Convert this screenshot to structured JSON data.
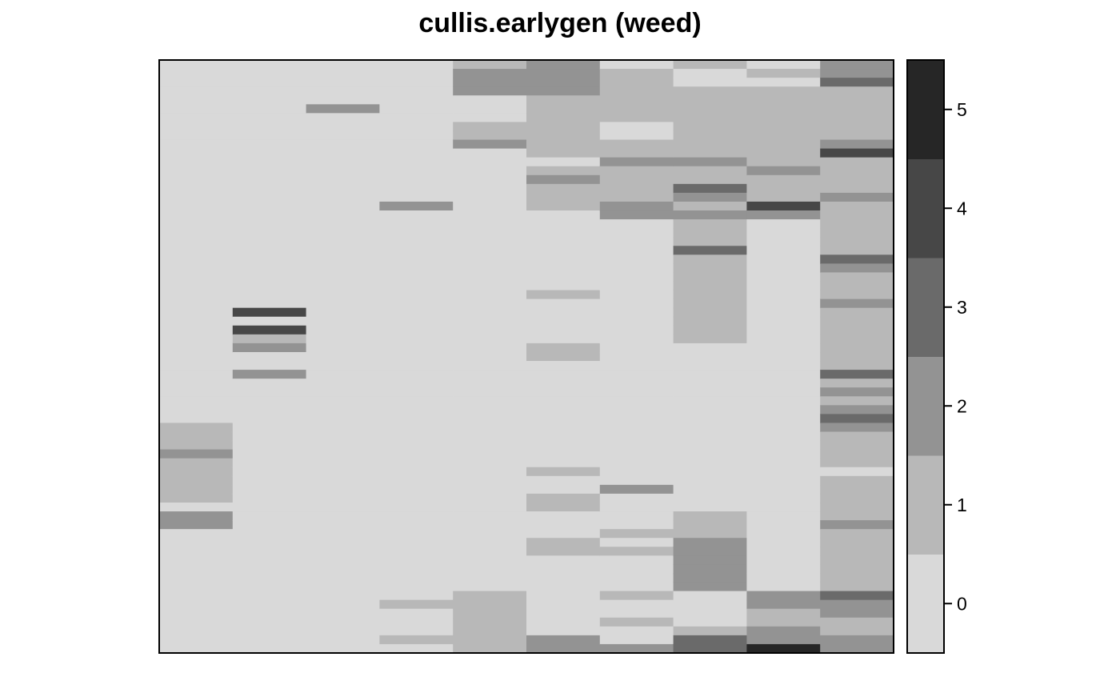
{
  "chart_data": {
    "type": "heatmap",
    "title": "cullis.earlygen (weed)",
    "xlabel": "",
    "ylabel": "",
    "n_cols": 10,
    "n_rows": 67,
    "zlim": [
      0,
      5
    ],
    "colorbar": {
      "ticks": [
        0,
        1,
        2,
        3,
        4,
        5
      ],
      "colors": [
        "#d9d9d9",
        "#b8b8b8",
        "#939393",
        "#6a6a6a",
        "#474747",
        "#262626"
      ]
    },
    "columns": [
      [
        0,
        0,
        0,
        0,
        0,
        0,
        0,
        0,
        0,
        0,
        0,
        0,
        0,
        0,
        0,
        0,
        0,
        0,
        0,
        0,
        0,
        0,
        0,
        0,
        0,
        0,
        0,
        0,
        0,
        0,
        0,
        0,
        0,
        0,
        0,
        0,
        0,
        0,
        0,
        0,
        0,
        1,
        1,
        1,
        2,
        1,
        1,
        1,
        1,
        1,
        0,
        2,
        2,
        0,
        0,
        0,
        0,
        0,
        0,
        0,
        0,
        0,
        0,
        0,
        0,
        0,
        0
      ],
      [
        0,
        0,
        0,
        0,
        0,
        0,
        0,
        0,
        0,
        0,
        0,
        0,
        0,
        0,
        0,
        0,
        0,
        0,
        0,
        0,
        0,
        0,
        0,
        0,
        0,
        0,
        0,
        0,
        4,
        0,
        4,
        1,
        2,
        0,
        0,
        2,
        0,
        0,
        0,
        0,
        0,
        0,
        0,
        0,
        0,
        0,
        0,
        0,
        0,
        0,
        0,
        0,
        0,
        0,
        0,
        0,
        0,
        0,
        0,
        0,
        0,
        0,
        0,
        0,
        0,
        0,
        0
      ],
      [
        0,
        0,
        0,
        0,
        0,
        2,
        0,
        0,
        0,
        0,
        0,
        0,
        0,
        0,
        0,
        0,
        0,
        0,
        0,
        0,
        0,
        0,
        0,
        0,
        0,
        0,
        0,
        0,
        0,
        0,
        0,
        0,
        0,
        0,
        0,
        0,
        0,
        0,
        0,
        0,
        0,
        0,
        0,
        0,
        0,
        0,
        0,
        0,
        0,
        0,
        0,
        0,
        0,
        0,
        0,
        0,
        0,
        0,
        0,
        0,
        0,
        0,
        0,
        0,
        0,
        0,
        0
      ],
      [
        0,
        0,
        0,
        0,
        0,
        0,
        0,
        0,
        0,
        0,
        0,
        0,
        0,
        0,
        0,
        0,
        2,
        0,
        0,
        0,
        0,
        0,
        0,
        0,
        0,
        0,
        0,
        0,
        0,
        0,
        0,
        0,
        0,
        0,
        0,
        0,
        0,
        0,
        0,
        0,
        0,
        0,
        0,
        0,
        0,
        0,
        0,
        0,
        0,
        0,
        0,
        0,
        0,
        0,
        0,
        0,
        0,
        0,
        0,
        0,
        0,
        1,
        0,
        0,
        0,
        1,
        0
      ],
      [
        1,
        2,
        2,
        2,
        0,
        0,
        0,
        1,
        1,
        2,
        0,
        0,
        0,
        0,
        0,
        0,
        0,
        0,
        0,
        0,
        0,
        0,
        0,
        0,
        0,
        0,
        0,
        0,
        0,
        0,
        0,
        0,
        0,
        0,
        0,
        0,
        0,
        0,
        0,
        0,
        0,
        0,
        0,
        0,
        0,
        0,
        0,
        0,
        0,
        0,
        0,
        0,
        0,
        0,
        0,
        0,
        0,
        0,
        0,
        0,
        1,
        1,
        1,
        1,
        1,
        1,
        1
      ],
      [
        2,
        2,
        2,
        2,
        1,
        1,
        1,
        1,
        1,
        1,
        1,
        0,
        1,
        2,
        1,
        1,
        1,
        0,
        0,
        0,
        0,
        0,
        0,
        0,
        0,
        0,
        1,
        0,
        0,
        0,
        0,
        0,
        1,
        1,
        0,
        0,
        0,
        0,
        0,
        0,
        0,
        0,
        0,
        0,
        0,
        0,
        1,
        0,
        0,
        1,
        1,
        0,
        0,
        0,
        1,
        1,
        0,
        0,
        0,
        0,
        0,
        0,
        0,
        0,
        0,
        2,
        2
      ],
      [
        0,
        1,
        1,
        1,
        1,
        1,
        1,
        0,
        0,
        1,
        1,
        2,
        1,
        1,
        1,
        1,
        2,
        2,
        0,
        0,
        0,
        0,
        0,
        0,
        0,
        0,
        0,
        0,
        0,
        0,
        0,
        0,
        0,
        0,
        0,
        0,
        0,
        0,
        0,
        0,
        0,
        0,
        0,
        0,
        0,
        0,
        0,
        0,
        2,
        0,
        0,
        0,
        0,
        1,
        0,
        1,
        0,
        0,
        0,
        0,
        1,
        0,
        0,
        1,
        0,
        0,
        2
      ],
      [
        1,
        0,
        0,
        1,
        1,
        1,
        1,
        1,
        1,
        1,
        1,
        2,
        1,
        1,
        3,
        2,
        1,
        2,
        1,
        1,
        1,
        3,
        1,
        1,
        1,
        1,
        1,
        1,
        1,
        1,
        1,
        1,
        0,
        0,
        0,
        0,
        0,
        0,
        0,
        0,
        0,
        0,
        0,
        0,
        0,
        0,
        0,
        0,
        0,
        0,
        0,
        1,
        1,
        1,
        2,
        2,
        2,
        2,
        2,
        2,
        0,
        0,
        0,
        0,
        1,
        3,
        3
      ],
      [
        0,
        1,
        0,
        1,
        1,
        1,
        1,
        1,
        1,
        1,
        1,
        1,
        2,
        1,
        1,
        1,
        4,
        2,
        0,
        0,
        0,
        0,
        0,
        0,
        0,
        0,
        0,
        0,
        0,
        0,
        0,
        0,
        0,
        0,
        0,
        0,
        0,
        0,
        0,
        0,
        0,
        0,
        0,
        0,
        0,
        0,
        0,
        0,
        0,
        0,
        0,
        0,
        0,
        0,
        0,
        0,
        0,
        0,
        0,
        0,
        2,
        2,
        1,
        1,
        2,
        2,
        5
      ],
      [
        2,
        2,
        3,
        1,
        1,
        1,
        1,
        1,
        1,
        2,
        4,
        1,
        1,
        1,
        1,
        2,
        1,
        1,
        1,
        1,
        1,
        1,
        3,
        2,
        1,
        1,
        1,
        2,
        1,
        1,
        1,
        1,
        1,
        1,
        1,
        3,
        1,
        2,
        1,
        2,
        3,
        2,
        1,
        1,
        1,
        1,
        0,
        1,
        1,
        1,
        1,
        1,
        2,
        1,
        1,
        1,
        1,
        1,
        1,
        1,
        3,
        2,
        2,
        1,
        1,
        2,
        2
      ]
    ]
  }
}
